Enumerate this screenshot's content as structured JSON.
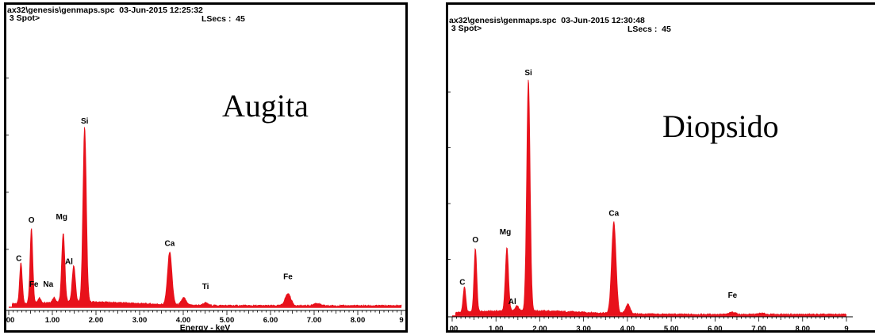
{
  "chart_data": [
    {
      "type": "line",
      "header": {
        "file": "ax32\\genesis\\genmaps.spc  03-Jun-2015 12:25:32",
        "spot": " 3 Spot>",
        "lsecs": "LSecs :  45"
      },
      "title": "Augita",
      "xlabel": "Energy - keV",
      "xlim": [
        0,
        9
      ],
      "ylim": [
        0,
        100
      ],
      "x_ticks": [
        "00",
        "1.00",
        "2.00",
        "3.00",
        "4.00",
        "5.00",
        "6.00",
        "7.00",
        "8.00",
        "9"
      ],
      "peaks": [
        {
          "label": "C",
          "x": 0.28,
          "y": 17
        },
        {
          "label": "O",
          "x": 0.52,
          "y": 31
        },
        {
          "label": "Fe",
          "x": 0.7,
          "y": 2
        },
        {
          "label": "Na",
          "x": 1.04,
          "y": 2
        },
        {
          "label": "Mg",
          "x": 1.25,
          "y": 29
        },
        {
          "label": "Al",
          "x": 1.49,
          "y": 15
        },
        {
          "label": "Si",
          "x": 1.74,
          "y": 73
        },
        {
          "label": "Ca",
          "x": 3.69,
          "y": 22
        },
        {
          "label": "",
          "x": 4.01,
          "y": 3
        },
        {
          "label": "Ti",
          "x": 4.51,
          "y": 1
        },
        {
          "label": "Fe",
          "x": 6.4,
          "y": 5
        },
        {
          "label": "",
          "x": 7.06,
          "y": 1
        }
      ],
      "colors": {
        "spectrum": "#e8111b",
        "baseline": "#e8111b"
      }
    },
    {
      "type": "line",
      "header": {
        "file": "ax32\\genesis\\genmaps.spc  03-Jun-2015 12:30:48",
        "spot": " 3 Spot>",
        "lsecs": "LSecs :  45"
      },
      "title": "Diopsido",
      "xlabel": "",
      "xlim": [
        0,
        9
      ],
      "ylim": [
        0,
        100
      ],
      "x_ticks": [
        "00",
        "1.00",
        "2.00",
        "3.00",
        "4.00",
        "5.00",
        "6.00",
        "7.00",
        "8.00",
        "9"
      ],
      "peaks": [
        {
          "label": "C",
          "x": 0.28,
          "y": 11
        },
        {
          "label": "O",
          "x": 0.53,
          "y": 27
        },
        {
          "label": "Mg",
          "x": 1.25,
          "y": 27
        },
        {
          "label": "Al",
          "x": 1.48,
          "y": 2
        },
        {
          "label": "Si",
          "x": 1.74,
          "y": 99
        },
        {
          "label": "Ca",
          "x": 3.69,
          "y": 39
        },
        {
          "label": "",
          "x": 4.01,
          "y": 4
        },
        {
          "label": "Fe",
          "x": 6.4,
          "y": 1
        },
        {
          "label": "",
          "x": 7.06,
          "y": 0.5
        }
      ],
      "colors": {
        "spectrum": "#e8111b",
        "baseline": "#e8111b"
      }
    }
  ]
}
